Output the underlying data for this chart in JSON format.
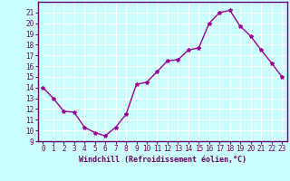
{
  "x": [
    0,
    1,
    2,
    3,
    4,
    5,
    6,
    7,
    8,
    9,
    10,
    11,
    12,
    13,
    14,
    15,
    16,
    17,
    18,
    19,
    20,
    21,
    22,
    23
  ],
  "y": [
    14.0,
    13.0,
    11.8,
    11.7,
    10.3,
    9.8,
    9.5,
    10.3,
    11.5,
    14.3,
    14.5,
    15.5,
    16.5,
    16.6,
    17.5,
    17.7,
    20.0,
    21.0,
    21.2,
    19.7,
    18.8,
    17.5,
    16.3,
    15.0
  ],
  "xlabel": "Windchill (Refroidissement éolien,°C)",
  "ylim": [
    9,
    22
  ],
  "xlim": [
    -0.5,
    23.5
  ],
  "yticks": [
    9,
    10,
    11,
    12,
    13,
    14,
    15,
    16,
    17,
    18,
    19,
    20,
    21
  ],
  "xticks": [
    0,
    1,
    2,
    3,
    4,
    5,
    6,
    7,
    8,
    9,
    10,
    11,
    12,
    13,
    14,
    15,
    16,
    17,
    18,
    19,
    20,
    21,
    22,
    23
  ],
  "line_color": "#990099",
  "marker": "*",
  "marker_size": 3,
  "bg_color": "#ccffff",
  "grid_color": "#ffffff",
  "axis_color": "#660066",
  "tick_label_color": "#660066",
  "xlabel_color": "#660066",
  "xlabel_fontsize": 6,
  "tick_fontsize": 5.5,
  "line_width": 1.0
}
